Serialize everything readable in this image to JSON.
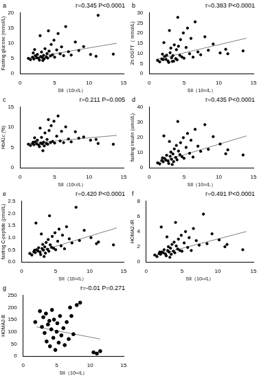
{
  "chart_data": [
    {
      "type": "scatter",
      "title": "a",
      "annotation": "r=0.345 P<0.0001",
      "x_label": "SII（10¹¹/L）",
      "y_label": "Fasting glucose (mmol/L)",
      "xlim": [
        0,
        15
      ],
      "xticks": [
        0,
        5,
        10,
        15
      ],
      "ylim": [
        0,
        20
      ],
      "yticks": [
        0,
        5,
        10,
        15,
        20
      ],
      "grid": false,
      "series": [
        {
          "type": "scatter",
          "marker": "circle",
          "color": "#000000",
          "x": [
            1.2,
            1.5,
            1.8,
            2.0,
            2.2,
            2.4,
            2.5,
            2.7,
            2.8,
            3.0,
            3.1,
            3.2,
            3.4,
            3.5,
            3.6,
            3.8,
            3.9,
            4.0,
            4.2,
            4.4,
            4.5,
            4.7,
            4.9,
            5.0,
            5.3,
            5.5,
            5.8,
            6.0,
            6.3,
            6.6,
            7.0,
            7.4,
            8.0,
            8.5,
            9.2,
            10.2,
            11.0,
            11.3,
            13.5,
            2.9,
            3.3,
            2.1,
            4.1,
            1.9
          ],
          "values": [
            5.0,
            4.6,
            5.4,
            4.8,
            5.9,
            5.2,
            6.3,
            5.0,
            4.4,
            5.6,
            7.1,
            5.3,
            6.0,
            4.9,
            8.2,
            5.5,
            6.6,
            5.1,
            7.4,
            5.8,
            9.6,
            6.2,
            11.0,
            5.4,
            7.8,
            13.2,
            6.5,
            8.8,
            5.9,
            15.5,
            7.2,
            6.1,
            10.4,
            7.6,
            8.9,
            6.3,
            5.7,
            19.2,
            6.4,
            12.5,
            4.3,
            7.9,
            14.1,
            6.8
          ]
        },
        {
          "type": "line",
          "line_style": "solid",
          "color": "#808080",
          "x": [
            1,
            14
          ],
          "values": [
            5.0,
            10.0
          ]
        }
      ]
    },
    {
      "type": "scatter",
      "title": "b",
      "annotation": "r=0.383 P<0.0001",
      "x_label": "SII（10¹¹/L）",
      "y_label": "2h OGTT（ mmol/L)",
      "xlim": [
        0,
        15
      ],
      "xticks": [
        0,
        5,
        10,
        15
      ],
      "ylim": [
        0,
        30
      ],
      "yticks": [
        0,
        5,
        10,
        15,
        20,
        25,
        30
      ],
      "grid": false,
      "series": [
        {
          "type": "scatter",
          "marker": "circle",
          "color": "#000000",
          "x": [
            1.2,
            1.5,
            1.8,
            2.0,
            2.2,
            2.4,
            2.5,
            2.7,
            2.8,
            3.0,
            3.1,
            3.2,
            3.4,
            3.5,
            3.6,
            3.8,
            3.9,
            4.0,
            4.2,
            4.4,
            4.5,
            4.7,
            4.9,
            5.0,
            5.3,
            5.5,
            5.8,
            6.0,
            6.3,
            6.6,
            7.0,
            7.4,
            8.0,
            8.5,
            9.2,
            10.2,
            11.0,
            11.3,
            13.5,
            2.9,
            3.3,
            2.1,
            4.1,
            1.9
          ],
          "values": [
            6.5,
            5.8,
            7.2,
            6.9,
            8.4,
            7.0,
            9.1,
            6.2,
            5.5,
            10.3,
            12.6,
            7.8,
            8.9,
            6.1,
            14.2,
            7.4,
            11.8,
            6.8,
            13.5,
            9.0,
            16.8,
            8.2,
            20.1,
            7.6,
            12.9,
            22.5,
            9.8,
            17.4,
            8.1,
            25.6,
            10.7,
            9.3,
            18.2,
            11.5,
            14.6,
            10.2,
            12.0,
            9.8,
            11.2,
            21.3,
            6.0,
            15.3,
            27.8,
            9.6
          ]
        },
        {
          "type": "line",
          "line_style": "solid",
          "color": "#808080",
          "x": [
            1,
            14
          ],
          "values": [
            7.0,
            17.5
          ]
        }
      ]
    },
    {
      "type": "scatter",
      "title": "c",
      "annotation": "r=0.211 P=0.005",
      "x_label": "SII（10¹¹/L）",
      "y_label": "HbA1c (%)",
      "xlim": [
        0,
        15
      ],
      "xticks": [
        0,
        5,
        10,
        15
      ],
      "ylim": [
        0,
        15
      ],
      "yticks": [
        0,
        5,
        10,
        15
      ],
      "grid": false,
      "series": [
        {
          "type": "scatter",
          "marker": "circle",
          "color": "#000000",
          "x": [
            1.2,
            1.5,
            1.8,
            2.0,
            2.2,
            2.4,
            2.5,
            2.7,
            2.8,
            3.0,
            3.1,
            3.2,
            3.4,
            3.5,
            3.6,
            3.8,
            3.9,
            4.0,
            4.2,
            4.4,
            4.5,
            4.7,
            4.9,
            5.0,
            5.3,
            5.5,
            5.8,
            6.0,
            6.3,
            6.6,
            7.0,
            7.4,
            8.0,
            8.5,
            9.2,
            10.2,
            11.0,
            11.3,
            13.5,
            2.9,
            3.3,
            2.1,
            4.1,
            1.9
          ],
          "values": [
            5.8,
            5.5,
            6.0,
            5.7,
            6.4,
            5.9,
            6.8,
            5.6,
            5.2,
            6.1,
            7.5,
            5.9,
            6.3,
            5.4,
            8.6,
            6.0,
            7.0,
            5.8,
            9.2,
            6.2,
            10.4,
            6.5,
            11.5,
            6.1,
            7.8,
            12.8,
            6.6,
            9.0,
            6.2,
            10.1,
            7.1,
            6.4,
            8.9,
            7.3,
            7.6,
            6.8,
            7.0,
            6.0,
            5.8,
            9.8,
            4.2,
            7.4,
            11.9,
            6.3
          ]
        },
        {
          "type": "line",
          "line_style": "solid",
          "color": "#808080",
          "x": [
            1,
            14
          ],
          "values": [
            6.0,
            8.0
          ]
        }
      ]
    },
    {
      "type": "scatter",
      "title": "d",
      "annotation": "r=0.435 P<0.0001",
      "x_label": "SII（10¹¹/L）",
      "y_label": "fasting insulin (umol/L)",
      "xlim": [
        0,
        15
      ],
      "xticks": [
        0,
        5,
        10,
        15
      ],
      "ylim": [
        0,
        40
      ],
      "yticks": [
        0,
        10,
        20,
        30,
        40
      ],
      "grid": false,
      "series": [
        {
          "type": "scatter",
          "marker": "circle",
          "color": "#000000",
          "x": [
            1.2,
            1.5,
            1.8,
            2.0,
            2.2,
            2.4,
            2.5,
            2.7,
            2.8,
            3.0,
            3.1,
            3.2,
            3.4,
            3.5,
            3.6,
            3.8,
            3.9,
            4.0,
            4.2,
            4.4,
            4.5,
            4.7,
            4.9,
            5.0,
            5.3,
            5.5,
            5.8,
            6.0,
            6.3,
            6.6,
            7.0,
            7.4,
            8.0,
            8.5,
            9.2,
            10.2,
            11.0,
            11.3,
            13.5,
            2.9,
            3.3,
            2.1,
            4.1,
            1.9
          ],
          "values": [
            3.2,
            2.5,
            4.8,
            3.9,
            6.1,
            5.0,
            8.2,
            4.4,
            2.8,
            7.5,
            10.3,
            5.6,
            9.1,
            4.0,
            12.4,
            6.8,
            14.7,
            5.2,
            11.0,
            8.6,
            16.5,
            7.3,
            19.8,
            6.2,
            13.4,
            22.6,
            9.5,
            18.1,
            7.0,
            25.3,
            14.2,
            10.8,
            28.4,
            12.1,
            20.5,
            15.6,
            9.2,
            11.8,
            8.4,
            17.3,
            2.1,
            21.0,
            30.5,
            6.5
          ]
        },
        {
          "type": "line",
          "line_style": "solid",
          "color": "#808080",
          "x": [
            1,
            14
          ],
          "values": [
            3.0,
            21.0
          ]
        }
      ]
    },
    {
      "type": "scatter",
      "title": "e",
      "annotation": "r=0.420 P<0.0001",
      "x_label": "SII（10¹¹/L）",
      "y_label": "fasting C-peptide (pmol/L)",
      "xlim": [
        0,
        15
      ],
      "xticks": [
        0,
        5,
        10,
        15
      ],
      "ylim": [
        0,
        2.5
      ],
      "yticks": [
        {
          "value": 0,
          "label": "0.0"
        },
        0.5,
        {
          "value": 1,
          "label": "1.0"
        },
        1.5,
        {
          "value": 2,
          "label": "2.0"
        },
        2.5
      ],
      "grid": false,
      "series": [
        {
          "type": "scatter",
          "marker": "circle",
          "color": "#000000",
          "x": [
            1.2,
            1.5,
            1.8,
            2.0,
            2.2,
            2.4,
            2.5,
            2.7,
            2.8,
            3.0,
            3.1,
            3.2,
            3.4,
            3.5,
            3.6,
            3.8,
            3.9,
            4.0,
            4.2,
            4.4,
            4.5,
            4.7,
            4.9,
            5.0,
            5.3,
            5.5,
            5.8,
            6.0,
            6.3,
            6.6,
            7.0,
            7.4,
            8.0,
            8.5,
            9.2,
            10.2,
            11.0,
            11.3,
            13.5,
            2.9,
            3.3,
            2.1,
            4.1,
            1.9
          ],
          "values": [
            0.35,
            0.28,
            0.42,
            0.38,
            0.5,
            0.45,
            0.58,
            0.4,
            0.3,
            0.55,
            0.72,
            0.48,
            0.62,
            0.36,
            0.8,
            0.52,
            0.92,
            0.44,
            0.7,
            0.6,
            1.05,
            0.56,
            1.2,
            0.5,
            0.85,
            1.35,
            0.66,
            1.1,
            0.54,
            1.45,
            0.95,
            0.78,
            2.25,
            0.88,
            1.3,
            1.0,
            0.75,
            0.82,
            0.7,
            1.15,
            0.22,
            1.6,
            1.9,
            0.48
          ]
        },
        {
          "type": "line",
          "line_style": "solid",
          "color": "#808080",
          "x": [
            1,
            14
          ],
          "values": [
            0.3,
            1.4
          ]
        }
      ]
    },
    {
      "type": "scatter",
      "title": "f",
      "annotation": "r=0.491 P<0.0001",
      "x_label": "SII（10¹¹/L）",
      "y_label": "HOMA2-IR",
      "xlim": [
        0,
        15
      ],
      "xticks": [
        0,
        5,
        10,
        15
      ],
      "ylim": [
        0,
        8
      ],
      "yticks": [
        0,
        2,
        4,
        6,
        8
      ],
      "grid": false,
      "series": [
        {
          "type": "scatter",
          "marker": "circle",
          "color": "#000000",
          "x": [
            1.2,
            1.5,
            1.8,
            2.0,
            2.2,
            2.4,
            2.5,
            2.7,
            2.8,
            3.0,
            3.1,
            3.2,
            3.4,
            3.5,
            3.6,
            3.8,
            3.9,
            4.0,
            4.2,
            4.4,
            4.5,
            4.7,
            4.9,
            5.0,
            5.3,
            5.5,
            5.8,
            6.0,
            6.3,
            6.6,
            7.0,
            7.4,
            8.0,
            8.5,
            9.2,
            10.2,
            11.0,
            11.3,
            13.5,
            2.9,
            3.3,
            2.1,
            4.1,
            1.9
          ],
          "values": [
            0.9,
            0.7,
            1.1,
            1.0,
            1.3,
            1.2,
            1.6,
            1.0,
            0.8,
            1.5,
            2.0,
            1.3,
            1.8,
            1.0,
            2.3,
            1.4,
            2.6,
            1.2,
            2.1,
            1.7,
            3.0,
            1.5,
            3.5,
            1.4,
            2.5,
            4.0,
            1.9,
            3.2,
            1.5,
            4.4,
            2.8,
            2.2,
            6.3,
            2.4,
            3.7,
            2.9,
            2.0,
            2.3,
            1.6,
            3.3,
            0.6,
            4.6,
            5.2,
            1.3
          ]
        },
        {
          "type": "line",
          "line_style": "solid",
          "color": "#808080",
          "x": [
            1,
            14
          ],
          "values": [
            0.8,
            4.0
          ]
        }
      ]
    },
    {
      "type": "scatter",
      "title": "g",
      "annotation": "r=-0.01 P=0.271",
      "x_label": "SII（10¹¹/L）",
      "y_label": "HOMA2-B",
      "xlim": [
        0,
        15
      ],
      "xticks": [
        0,
        5,
        10,
        15
      ],
      "ylim": [
        0,
        250
      ],
      "yticks": [
        0,
        50,
        100,
        150,
        200,
        250
      ],
      "grid": false,
      "series": [
        {
          "type": "scatter",
          "marker": "circle",
          "color": "#000000",
          "x": [
            1.8,
            2.5,
            2.8,
            3.0,
            3.2,
            3.4,
            3.5,
            3.7,
            3.9,
            4.0,
            4.2,
            4.3,
            4.5,
            4.6,
            4.8,
            5.0,
            5.1,
            5.3,
            5.5,
            5.7,
            6.0,
            6.2,
            6.5,
            6.8,
            7.0,
            7.2,
            7.5,
            8.0,
            8.5,
            10.5,
            11.0,
            11.5
          ],
          "values": [
            140,
            185,
            120,
            160,
            95,
            175,
            60,
            130,
            145,
            40,
            110,
            190,
            75,
            150,
            25,
            100,
            135,
            55,
            165,
            85,
            115,
            45,
            140,
            70,
            200,
            165,
            90,
            210,
            220,
            15,
            10,
            20
          ]
        },
        {
          "type": "line",
          "line_style": "solid",
          "color": "#808080",
          "x": [
            2,
            11.5
          ],
          "values": [
            120,
            70
          ]
        }
      ]
    }
  ]
}
